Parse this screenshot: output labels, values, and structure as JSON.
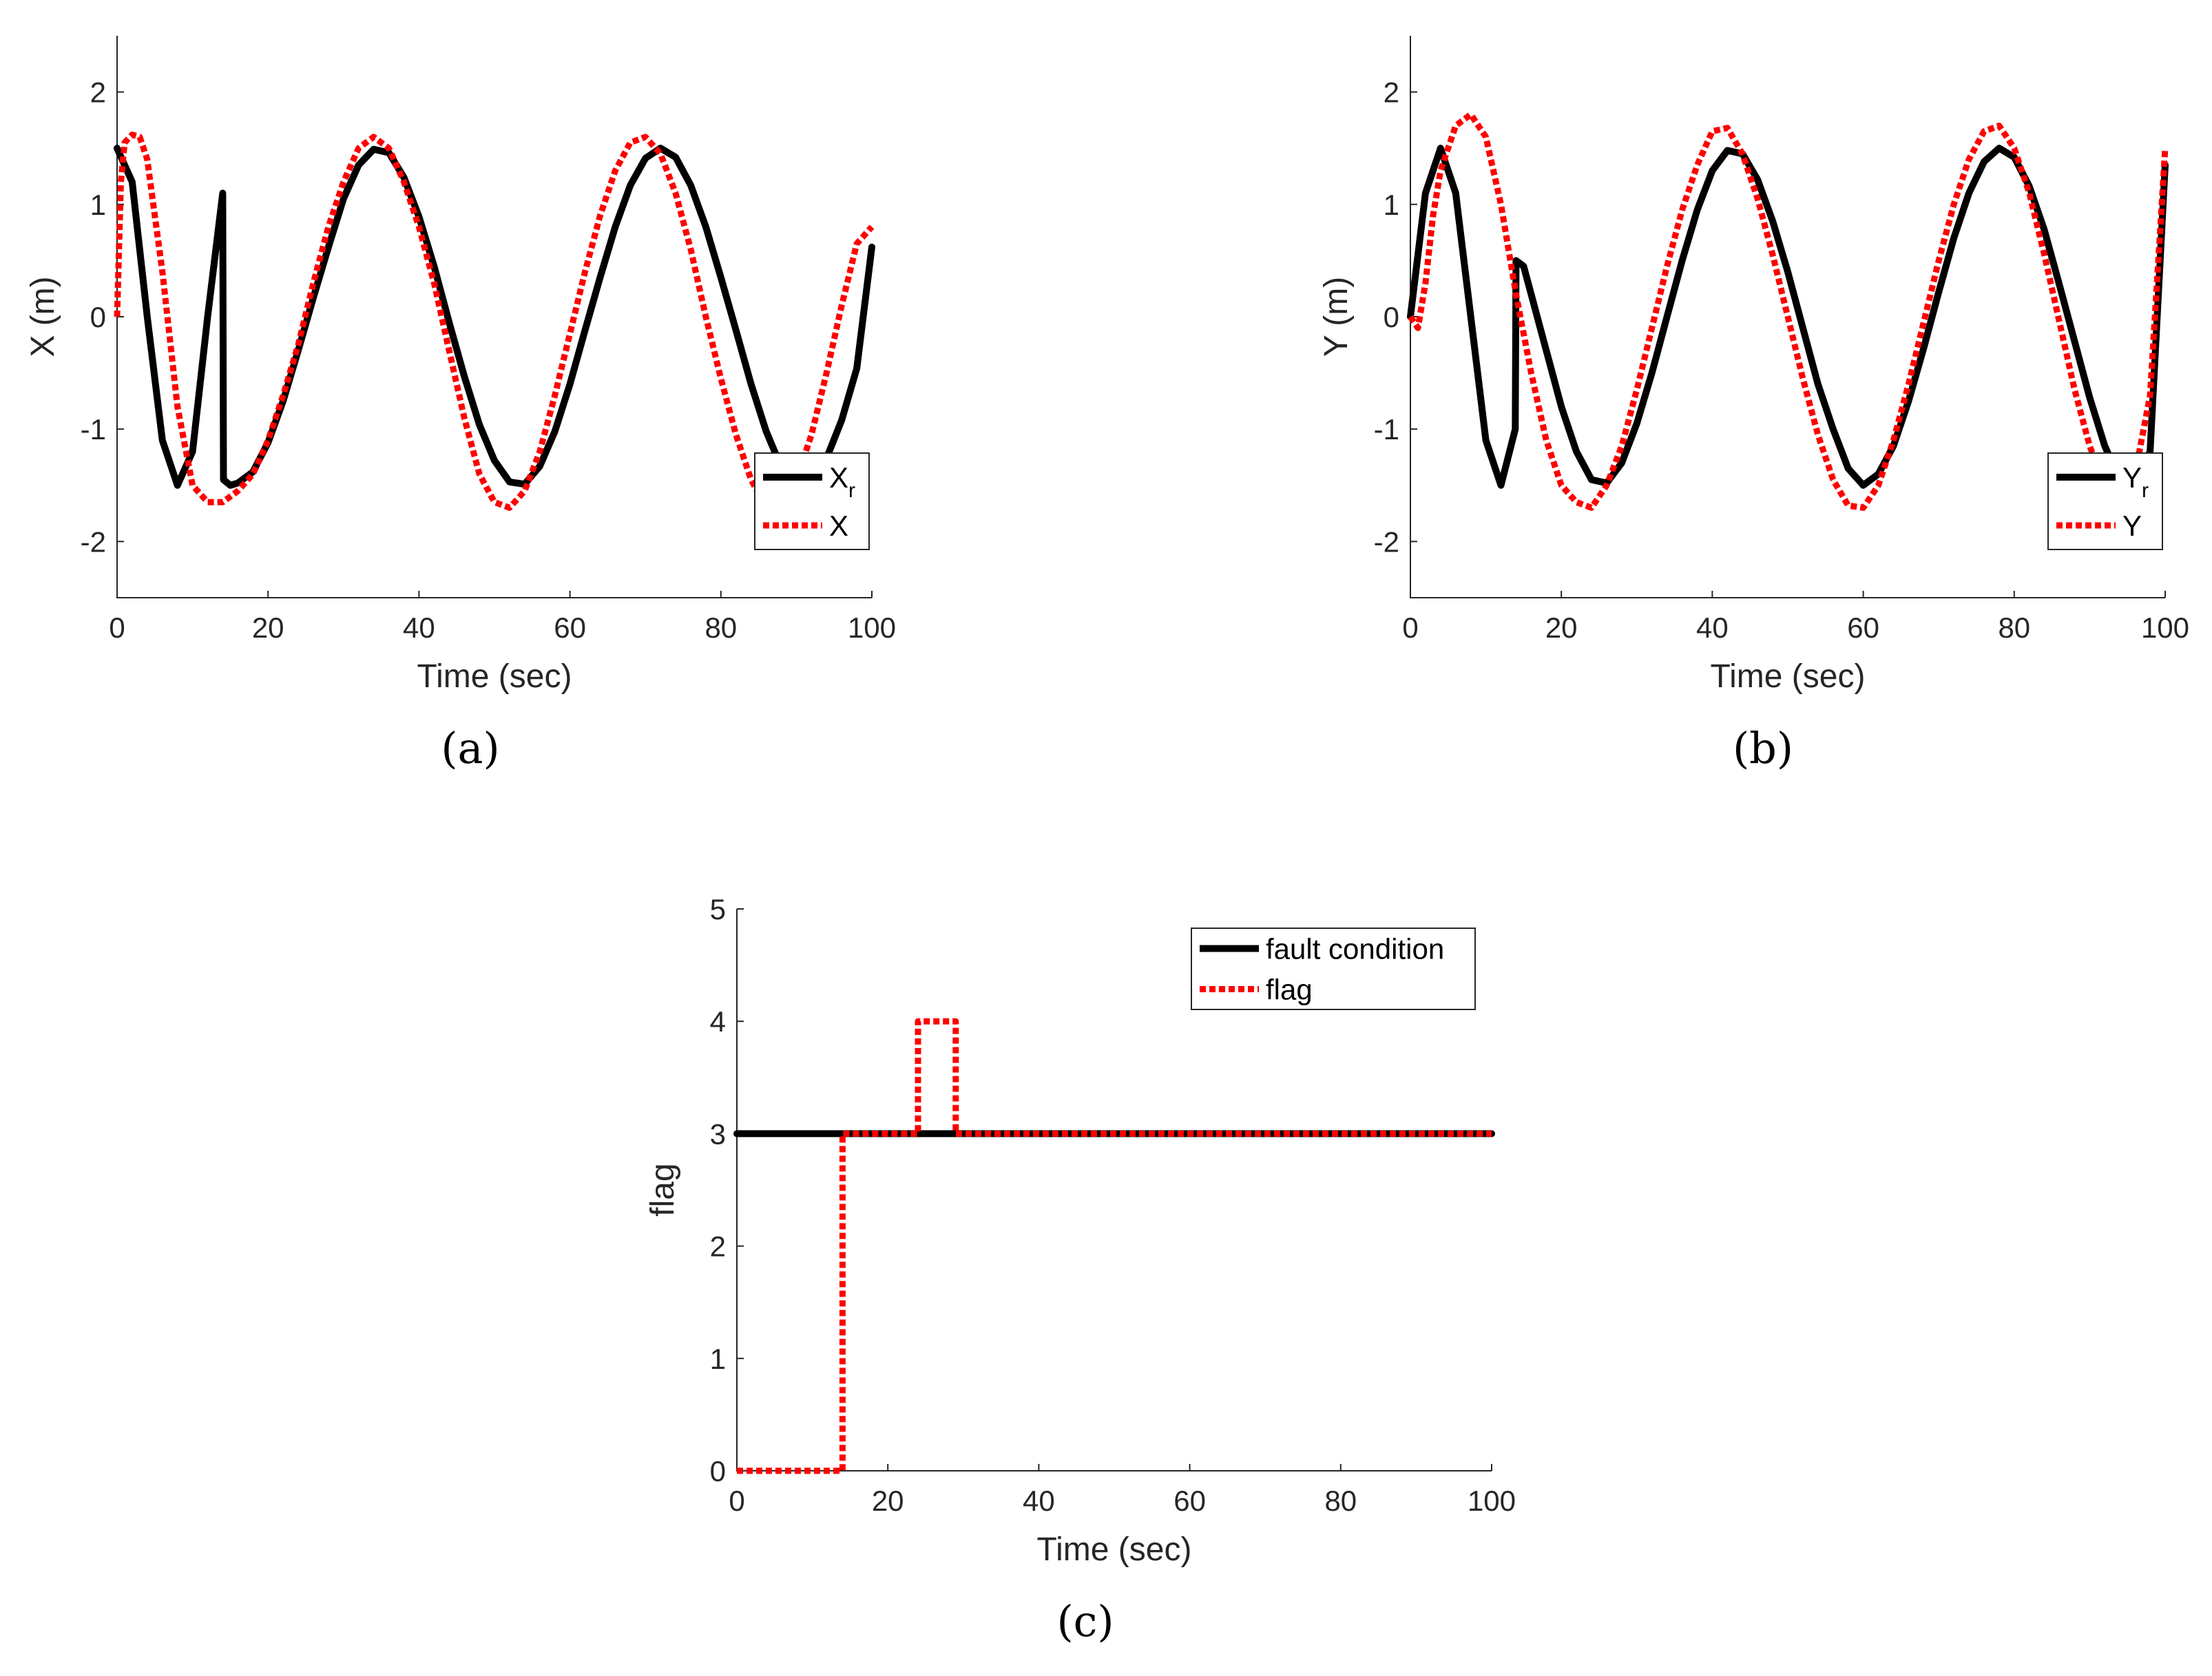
{
  "chart_data": [
    {
      "type": "line",
      "caption": "(a)",
      "xlabel": "Time (sec)",
      "ylabel": "X (m)",
      "xlim": [
        0,
        100
      ],
      "ylim": [
        -2.5,
        2.5
      ],
      "xticks": [
        0,
        20,
        40,
        60,
        80,
        100
      ],
      "yticks": [
        -2,
        -1,
        0,
        1,
        2
      ],
      "grid": false,
      "legend": "bottom-right",
      "series": [
        {
          "name": "X",
          "legend_main": "X",
          "legend_sub": "r",
          "color": "#000000",
          "style": "solid",
          "x": [
            0,
            2,
            4,
            6,
            8,
            10,
            12,
            14,
            14.1,
            15,
            16,
            18,
            20,
            22,
            24,
            26,
            28,
            30,
            32,
            34,
            36,
            38,
            40,
            42,
            44,
            46,
            48,
            50,
            52,
            54,
            56,
            58,
            60,
            62,
            64,
            66,
            68,
            70,
            72,
            74,
            76,
            78,
            80,
            82,
            84,
            86,
            88,
            90,
            92,
            94,
            96,
            98,
            100
          ],
          "y": [
            1.5,
            1.2,
            0.0,
            -1.1,
            -1.5,
            -1.2,
            0.0,
            1.1,
            -1.45,
            -1.5,
            -1.48,
            -1.38,
            -1.12,
            -0.75,
            -0.3,
            0.17,
            0.62,
            1.05,
            1.35,
            1.49,
            1.46,
            1.24,
            0.89,
            0.45,
            -0.05,
            -0.53,
            -0.96,
            -1.28,
            -1.47,
            -1.49,
            -1.33,
            -1.02,
            -0.6,
            -0.12,
            0.35,
            0.8,
            1.17,
            1.41,
            1.5,
            1.42,
            1.17,
            0.8,
            0.35,
            -0.12,
            -0.6,
            -1.02,
            -1.34,
            -1.49,
            -1.46,
            -1.26,
            -0.92,
            -0.46,
            0.62
          ]
        },
        {
          "name": "X",
          "legend_main": "X",
          "legend_sub": "",
          "color": "#ff0000",
          "style": "dotted",
          "x": [
            0,
            0.5,
            1,
            2,
            3,
            4,
            6,
            8,
            10,
            12,
            14,
            16,
            18,
            20,
            22,
            24,
            26,
            28,
            30,
            32,
            34,
            36,
            38,
            40,
            42,
            44,
            46,
            48,
            50,
            52,
            54,
            56,
            58,
            60,
            62,
            64,
            66,
            68,
            70,
            72,
            74,
            76,
            78,
            80,
            82,
            84,
            86,
            88,
            90,
            92,
            94,
            96,
            98,
            100
          ],
          "y": [
            0.0,
            1.2,
            1.55,
            1.62,
            1.6,
            1.4,
            0.4,
            -0.8,
            -1.5,
            -1.65,
            -1.65,
            -1.55,
            -1.4,
            -1.1,
            -0.7,
            -0.25,
            0.3,
            0.8,
            1.2,
            1.5,
            1.6,
            1.5,
            1.2,
            0.8,
            0.3,
            -0.3,
            -0.9,
            -1.4,
            -1.65,
            -1.7,
            -1.55,
            -1.2,
            -0.7,
            -0.15,
            0.4,
            0.9,
            1.3,
            1.55,
            1.6,
            1.45,
            1.1,
            0.6,
            0.0,
            -0.55,
            -1.05,
            -1.45,
            -1.7,
            -1.68,
            -1.45,
            -1.05,
            -0.5,
            0.1,
            0.65,
            0.8
          ]
        }
      ]
    },
    {
      "type": "line",
      "caption": "(b)",
      "xlabel": "Time (sec)",
      "ylabel": "Y (m)",
      "xlim": [
        0,
        100
      ],
      "ylim": [
        -2.5,
        2.5
      ],
      "xticks": [
        0,
        20,
        40,
        60,
        80,
        100
      ],
      "yticks": [
        -2,
        -1,
        0,
        1,
        2
      ],
      "grid": false,
      "legend": "bottom-right",
      "series": [
        {
          "name": "Y",
          "legend_main": "Y",
          "legend_sub": "r",
          "color": "#000000",
          "style": "solid",
          "x": [
            0,
            2,
            4,
            6,
            8,
            10,
            12,
            13.9,
            14,
            15,
            16,
            18,
            20,
            22,
            24,
            26,
            28,
            30,
            32,
            34,
            36,
            38,
            40,
            42,
            44,
            46,
            48,
            50,
            52,
            54,
            56,
            58,
            60,
            62,
            64,
            66,
            68,
            70,
            72,
            74,
            76,
            78,
            80,
            82,
            84,
            86,
            88,
            90,
            92,
            94,
            96,
            98,
            100
          ],
          "y": [
            0.0,
            1.1,
            1.5,
            1.1,
            0.0,
            -1.1,
            -1.5,
            -1.0,
            0.5,
            0.45,
            0.2,
            -0.3,
            -0.8,
            -1.2,
            -1.45,
            -1.48,
            -1.3,
            -0.95,
            -0.5,
            0.0,
            0.5,
            0.95,
            1.3,
            1.48,
            1.45,
            1.22,
            0.85,
            0.4,
            -0.1,
            -0.6,
            -1.0,
            -1.35,
            -1.5,
            -1.4,
            -1.15,
            -0.75,
            -0.28,
            0.22,
            0.7,
            1.1,
            1.38,
            1.5,
            1.42,
            1.16,
            0.77,
            0.28,
            -0.22,
            -0.72,
            -1.15,
            -1.45,
            -1.48,
            -1.2,
            1.35
          ]
        },
        {
          "name": "Y",
          "legend_main": "Y",
          "legend_sub": "",
          "color": "#ff0000",
          "style": "dotted",
          "x": [
            0,
            1,
            2,
            3,
            4,
            6,
            8,
            10,
            12,
            14,
            16,
            18,
            20,
            22,
            24,
            26,
            28,
            30,
            32,
            34,
            36,
            38,
            40,
            42,
            44,
            46,
            48,
            50,
            52,
            54,
            56,
            58,
            60,
            62,
            64,
            66,
            68,
            70,
            72,
            74,
            76,
            78,
            80,
            82,
            84,
            86,
            88,
            90,
            92,
            94,
            96,
            98,
            100
          ],
          "y": [
            0.0,
            -0.1,
            0.3,
            0.9,
            1.3,
            1.7,
            1.8,
            1.6,
            1.0,
            0.2,
            -0.5,
            -1.1,
            -1.5,
            -1.65,
            -1.7,
            -1.5,
            -1.15,
            -0.65,
            -0.1,
            0.45,
            0.95,
            1.35,
            1.65,
            1.68,
            1.45,
            1.05,
            0.55,
            0.0,
            -0.55,
            -1.05,
            -1.45,
            -1.68,
            -1.7,
            -1.5,
            -1.1,
            -0.6,
            -0.05,
            0.5,
            1.0,
            1.4,
            1.65,
            1.7,
            1.5,
            1.1,
            0.55,
            -0.05,
            -0.65,
            -1.15,
            -1.5,
            -1.65,
            -1.4,
            -0.7,
            1.5
          ]
        }
      ]
    },
    {
      "type": "line",
      "caption": "(c)",
      "xlabel": "Time (sec)",
      "ylabel": "flag",
      "xlim": [
        0,
        100
      ],
      "ylim": [
        0,
        5
      ],
      "xticks": [
        0,
        20,
        40,
        60,
        80,
        100
      ],
      "yticks": [
        0,
        1,
        2,
        3,
        4,
        5
      ],
      "grid": false,
      "legend": "top-right",
      "series": [
        {
          "name": "fault condition",
          "legend_main": "fault condition",
          "legend_sub": "",
          "color": "#000000",
          "style": "solid",
          "x": [
            0,
            100
          ],
          "y": [
            3,
            3
          ]
        },
        {
          "name": "flag",
          "legend_main": "flag",
          "legend_sub": "",
          "color": "#ff0000",
          "style": "dotted",
          "x": [
            0,
            14,
            14,
            24,
            24,
            29,
            29,
            100
          ],
          "y": [
            0,
            0,
            3,
            3,
            4,
            4,
            3,
            3
          ]
        }
      ]
    }
  ]
}
